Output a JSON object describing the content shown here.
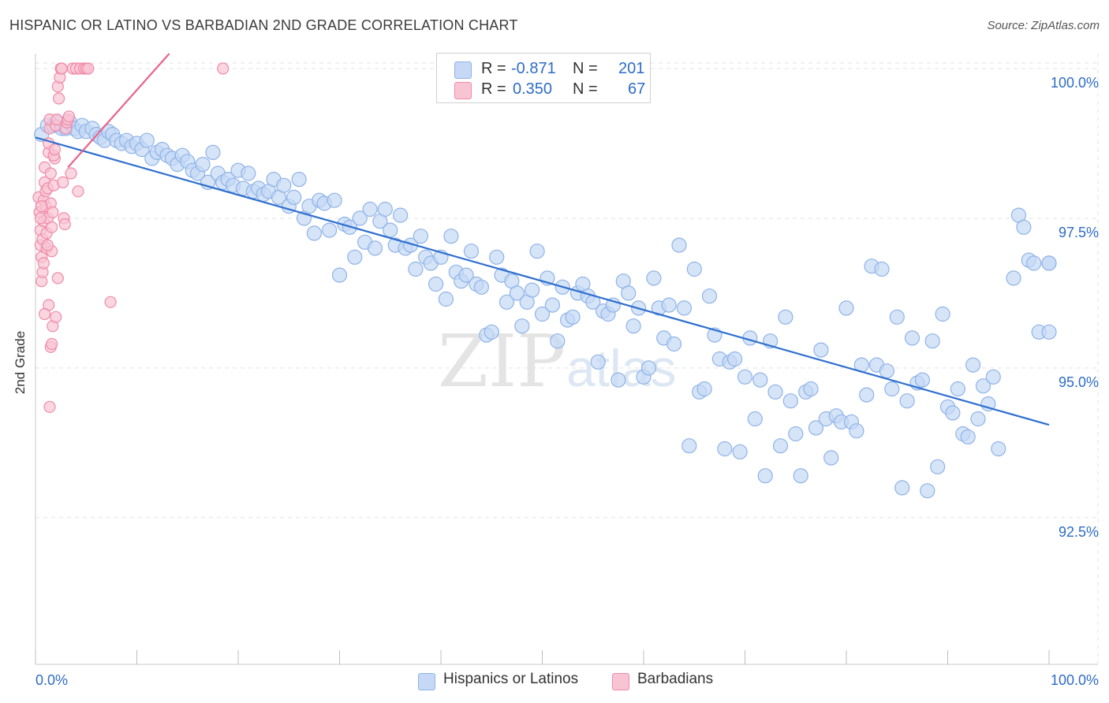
{
  "header": {
    "title": "HISPANIC OR LATINO VS BARBADIAN 2ND GRADE CORRELATION CHART",
    "source": "Source: ZipAtlas.com"
  },
  "watermark": {
    "zip": "ZIP",
    "atlas": "atlas"
  },
  "legend": {
    "rows": [
      {
        "r_label": "R =",
        "r_value": "-0.871",
        "n_label": "N =",
        "n_value": "201",
        "color": "#8fb3e8",
        "fill": "#c5d8f5"
      },
      {
        "r_label": "R =",
        "r_value": "0.350",
        "n_label": "N =",
        "n_value": "67",
        "color": "#f08aa8",
        "fill": "#f8c4d4"
      }
    ]
  },
  "bottom_legend": [
    {
      "label": "Hispanics or Latinos",
      "fill": "#c5d8f5",
      "stroke": "#8fb3e8"
    },
    {
      "label": "Barbadians",
      "fill": "#f8c4d4",
      "stroke": "#f08aa8"
    }
  ],
  "chart_data": {
    "type": "scatter",
    "title": "HISPANIC OR LATINO VS BARBADIAN 2ND GRADE CORRELATION CHART",
    "xlabel": "",
    "ylabel": "2nd Grade",
    "xlim": [
      0,
      100
    ],
    "ylim": [
      90.05,
      100.25
    ],
    "x_tick_labels": [
      "0.0%",
      "100.0%"
    ],
    "y_ticks": [
      {
        "value": 100.0,
        "label": "100.0%"
      },
      {
        "value": 97.5,
        "label": "97.5%"
      },
      {
        "value": 95.0,
        "label": "95.0%"
      },
      {
        "value": 92.5,
        "label": "92.5%"
      }
    ],
    "grid": true,
    "series": [
      {
        "name": "Hispanics or Latinos",
        "color": "#2e6fcf",
        "fill": "#c5d8f5",
        "stroke": "#8fb3e8",
        "radius": 9,
        "trend": {
          "x0": 0,
          "y0": 98.85,
          "x1": 100,
          "y1": 94.05
        },
        "points": [
          [
            0.6,
            98.9
          ],
          [
            1.2,
            99.05
          ],
          [
            1.8,
            99.05
          ],
          [
            2.2,
            99.1
          ],
          [
            2.6,
            99.0
          ],
          [
            3.0,
            99.0
          ],
          [
            3.4,
            99.1
          ],
          [
            3.8,
            99.0
          ],
          [
            4.2,
            98.95
          ],
          [
            4.6,
            99.05
          ],
          [
            5.0,
            98.95
          ],
          [
            5.6,
            99.0
          ],
          [
            6.0,
            98.9
          ],
          [
            6.4,
            98.85
          ],
          [
            6.8,
            98.8
          ],
          [
            7.2,
            98.95
          ],
          [
            7.6,
            98.9
          ],
          [
            8.0,
            98.8
          ],
          [
            8.5,
            98.75
          ],
          [
            9.0,
            98.8
          ],
          [
            9.5,
            98.7
          ],
          [
            10.0,
            98.75
          ],
          [
            10.5,
            98.65
          ],
          [
            11.0,
            98.8
          ],
          [
            11.5,
            98.5
          ],
          [
            12.0,
            98.6
          ],
          [
            12.5,
            98.65
          ],
          [
            13.0,
            98.55
          ],
          [
            13.5,
            98.5
          ],
          [
            14.0,
            98.4
          ],
          [
            14.5,
            98.55
          ],
          [
            15.0,
            98.45
          ],
          [
            15.5,
            98.3
          ],
          [
            16.0,
            98.25
          ],
          [
            16.5,
            98.4
          ],
          [
            17.0,
            98.1
          ],
          [
            17.5,
            98.6
          ],
          [
            18.0,
            98.25
          ],
          [
            18.5,
            98.1
          ],
          [
            19.0,
            98.15
          ],
          [
            19.5,
            98.05
          ],
          [
            20.0,
            98.3
          ],
          [
            20.5,
            98.0
          ],
          [
            21.0,
            98.25
          ],
          [
            21.5,
            97.95
          ],
          [
            22.0,
            98.0
          ],
          [
            22.5,
            97.9
          ],
          [
            23.0,
            97.95
          ],
          [
            23.5,
            98.15
          ],
          [
            24.0,
            97.85
          ],
          [
            24.5,
            98.05
          ],
          [
            25.0,
            97.7
          ],
          [
            25.5,
            97.85
          ],
          [
            26.0,
            98.15
          ],
          [
            26.5,
            97.5
          ],
          [
            27.0,
            97.7
          ],
          [
            27.5,
            97.25
          ],
          [
            28.0,
            97.8
          ],
          [
            28.5,
            97.75
          ],
          [
            29.0,
            97.3
          ],
          [
            29.5,
            97.8
          ],
          [
            30.0,
            96.55
          ],
          [
            30.5,
            97.4
          ],
          [
            31.0,
            97.35
          ],
          [
            31.5,
            96.85
          ],
          [
            32.0,
            97.5
          ],
          [
            32.5,
            97.1
          ],
          [
            33.0,
            97.65
          ],
          [
            33.5,
            97.0
          ],
          [
            34.0,
            97.45
          ],
          [
            34.5,
            97.65
          ],
          [
            35.0,
            97.3
          ],
          [
            35.5,
            97.05
          ],
          [
            36.0,
            97.55
          ],
          [
            36.5,
            97.0
          ],
          [
            37.0,
            97.05
          ],
          [
            37.5,
            96.65
          ],
          [
            38.0,
            97.2
          ],
          [
            38.5,
            96.85
          ],
          [
            39.0,
            96.75
          ],
          [
            39.5,
            96.4
          ],
          [
            40.0,
            96.85
          ],
          [
            40.5,
            96.15
          ],
          [
            41.0,
            97.2
          ],
          [
            41.5,
            96.6
          ],
          [
            42.0,
            96.45
          ],
          [
            42.5,
            96.55
          ],
          [
            43.0,
            96.95
          ],
          [
            43.5,
            96.4
          ],
          [
            44.0,
            96.35
          ],
          [
            44.5,
            95.55
          ],
          [
            45.0,
            95.6
          ],
          [
            45.5,
            96.85
          ],
          [
            46.0,
            96.55
          ],
          [
            46.5,
            96.1
          ],
          [
            47.0,
            96.45
          ],
          [
            47.5,
            96.25
          ],
          [
            48.0,
            95.7
          ],
          [
            48.5,
            96.1
          ],
          [
            49.0,
            96.3
          ],
          [
            49.5,
            96.95
          ],
          [
            50.0,
            95.9
          ],
          [
            50.5,
            96.5
          ],
          [
            51.0,
            96.05
          ],
          [
            51.5,
            95.45
          ],
          [
            52.0,
            96.35
          ],
          [
            52.5,
            95.8
          ],
          [
            53.0,
            95.85
          ],
          [
            53.5,
            96.25
          ],
          [
            54.0,
            96.4
          ],
          [
            54.5,
            96.2
          ],
          [
            55.0,
            96.1
          ],
          [
            55.5,
            95.1
          ],
          [
            56.0,
            95.95
          ],
          [
            56.5,
            95.9
          ],
          [
            57.0,
            96.05
          ],
          [
            57.5,
            94.8
          ],
          [
            58.0,
            96.45
          ],
          [
            58.5,
            96.25
          ],
          [
            59.0,
            95.7
          ],
          [
            59.5,
            96.0
          ],
          [
            60.0,
            94.85
          ],
          [
            60.5,
            95.0
          ],
          [
            61.0,
            96.5
          ],
          [
            61.5,
            96.0
          ],
          [
            62.0,
            95.5
          ],
          [
            62.5,
            96.05
          ],
          [
            63.0,
            95.4
          ],
          [
            63.5,
            97.05
          ],
          [
            64.0,
            96.0
          ],
          [
            64.5,
            93.7
          ],
          [
            65.0,
            96.65
          ],
          [
            65.5,
            94.6
          ],
          [
            66.0,
            94.65
          ],
          [
            66.5,
            96.2
          ],
          [
            67.0,
            95.55
          ],
          [
            67.5,
            95.15
          ],
          [
            68.0,
            93.65
          ],
          [
            68.5,
            95.1
          ],
          [
            69.0,
            95.15
          ],
          [
            69.5,
            93.6
          ],
          [
            70.0,
            94.85
          ],
          [
            70.5,
            95.5
          ],
          [
            71.0,
            94.15
          ],
          [
            71.5,
            94.8
          ],
          [
            72.0,
            93.2
          ],
          [
            72.5,
            95.45
          ],
          [
            73.0,
            94.6
          ],
          [
            73.5,
            93.7
          ],
          [
            74.0,
            95.85
          ],
          [
            74.5,
            94.45
          ],
          [
            75.0,
            93.9
          ],
          [
            75.5,
            93.2
          ],
          [
            76.0,
            94.6
          ],
          [
            76.5,
            94.65
          ],
          [
            77.0,
            94.0
          ],
          [
            77.5,
            95.3
          ],
          [
            78.0,
            94.15
          ],
          [
            78.5,
            93.5
          ],
          [
            79.0,
            94.2
          ],
          [
            79.5,
            94.1
          ],
          [
            80.0,
            96.0
          ],
          [
            80.5,
            94.1
          ],
          [
            81.0,
            93.95
          ],
          [
            81.5,
            95.05
          ],
          [
            82.0,
            94.55
          ],
          [
            82.5,
            96.7
          ],
          [
            83.0,
            95.05
          ],
          [
            83.5,
            96.65
          ],
          [
            84.0,
            94.95
          ],
          [
            84.5,
            94.65
          ],
          [
            85.0,
            95.85
          ],
          [
            85.5,
            93.0
          ],
          [
            86.0,
            94.45
          ],
          [
            86.5,
            95.5
          ],
          [
            87.0,
            94.75
          ],
          [
            87.5,
            94.8
          ],
          [
            88.0,
            92.95
          ],
          [
            88.5,
            95.45
          ],
          [
            89.0,
            93.35
          ],
          [
            89.5,
            95.9
          ],
          [
            90.0,
            94.35
          ],
          [
            90.5,
            94.25
          ],
          [
            91.0,
            94.65
          ],
          [
            91.5,
            93.9
          ],
          [
            92.0,
            93.85
          ],
          [
            92.5,
            95.05
          ],
          [
            93.0,
            94.15
          ],
          [
            93.5,
            94.7
          ],
          [
            94.0,
            94.4
          ],
          [
            94.5,
            94.85
          ],
          [
            95.0,
            93.65
          ],
          [
            96.5,
            96.5
          ],
          [
            97.0,
            97.55
          ],
          [
            97.5,
            97.35
          ],
          [
            98.0,
            96.8
          ],
          [
            98.5,
            96.75
          ],
          [
            99.0,
            95.6
          ],
          [
            100.0,
            96.75
          ],
          [
            100.0,
            95.6
          ],
          [
            100.0,
            96.75
          ]
        ]
      },
      {
        "name": "Barbadians",
        "color": "#e8638c",
        "fill": "#f8c4d4",
        "stroke": "#f08aa8",
        "radius": 7,
        "trend": {
          "x0": 3.2,
          "y0": 98.35,
          "x1": 13.2,
          "y1": 100.25
        },
        "points": [
          [
            0.3,
            97.85
          ],
          [
            0.4,
            97.6
          ],
          [
            0.5,
            97.3
          ],
          [
            0.5,
            97.05
          ],
          [
            0.6,
            96.85
          ],
          [
            0.6,
            96.45
          ],
          [
            0.7,
            96.6
          ],
          [
            0.7,
            97.15
          ],
          [
            0.8,
            97.45
          ],
          [
            0.8,
            97.8
          ],
          [
            0.9,
            98.1
          ],
          [
            0.9,
            98.35
          ],
          [
            1.0,
            97.95
          ],
          [
            1.0,
            97.7
          ],
          [
            1.1,
            97.25
          ],
          [
            1.1,
            97.0
          ],
          [
            1.2,
            97.5
          ],
          [
            1.2,
            98.0
          ],
          [
            1.3,
            98.6
          ],
          [
            1.3,
            98.75
          ],
          [
            1.4,
            99.0
          ],
          [
            1.4,
            99.15
          ],
          [
            1.5,
            98.25
          ],
          [
            1.5,
            97.75
          ],
          [
            1.6,
            97.35
          ],
          [
            1.6,
            96.95
          ],
          [
            1.7,
            97.6
          ],
          [
            1.8,
            98.05
          ],
          [
            1.9,
            98.5
          ],
          [
            2.0,
            99.05
          ],
          [
            2.1,
            99.15
          ],
          [
            2.2,
            99.7
          ],
          [
            2.3,
            99.5
          ],
          [
            2.4,
            99.85
          ],
          [
            2.5,
            100.0
          ],
          [
            2.6,
            100.0
          ],
          [
            2.7,
            98.1
          ],
          [
            2.8,
            97.5
          ],
          [
            2.9,
            97.4
          ],
          [
            3.0,
            99.0
          ],
          [
            3.1,
            99.1
          ],
          [
            3.2,
            99.15
          ],
          [
            3.3,
            99.2
          ],
          [
            3.5,
            98.25
          ],
          [
            3.7,
            100.0
          ],
          [
            4.0,
            100.0
          ],
          [
            4.2,
            97.95
          ],
          [
            4.4,
            100.0
          ],
          [
            4.8,
            100.0
          ],
          [
            5.0,
            100.0
          ],
          [
            5.2,
            100.0
          ],
          [
            1.4,
            94.35
          ],
          [
            1.5,
            95.35
          ],
          [
            1.6,
            95.4
          ],
          [
            1.7,
            95.7
          ],
          [
            2.0,
            95.85
          ],
          [
            1.2,
            97.05
          ],
          [
            0.8,
            96.75
          ],
          [
            0.5,
            97.5
          ],
          [
            0.6,
            97.7
          ],
          [
            7.4,
            96.1
          ],
          [
            18.5,
            100.0
          ],
          [
            1.8,
            98.55
          ],
          [
            1.9,
            98.65
          ],
          [
            2.2,
            96.5
          ],
          [
            1.3,
            96.05
          ],
          [
            0.9,
            95.9
          ]
        ]
      }
    ]
  }
}
